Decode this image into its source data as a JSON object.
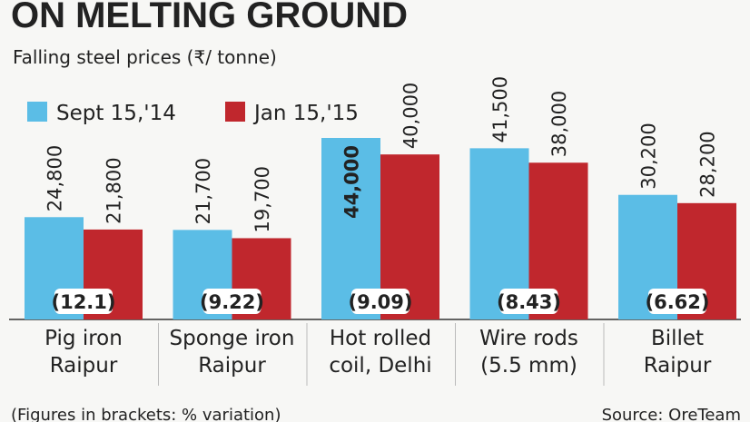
{
  "chart_data": {
    "type": "bar",
    "title": "ON MELTING GROUND",
    "subtitle": "Falling steel prices (₹/ tonne)",
    "categories": [
      "Pig iron\nRaipur",
      "Sponge iron\nRaipur",
      "Hot rolled\ncoil, Delhi",
      "Wire rods\n(5.5 mm)",
      "Billet\nRaipur"
    ],
    "series": [
      {
        "name": "Sept 15,'14",
        "color": "#5bbde6",
        "values": [
          24800,
          21700,
          44000,
          41500,
          30200
        ],
        "value_labels": [
          "24,800",
          "21,700",
          "44,000",
          "41,500",
          "30,200"
        ]
      },
      {
        "name": "Jan 15,'15",
        "color": "#c0272d",
        "values": [
          21800,
          19700,
          40000,
          38000,
          28200
        ],
        "value_labels": [
          "21,800",
          "19,700",
          "40,000",
          "38,000",
          "28,200"
        ]
      }
    ],
    "variation_labels": [
      "(12.1)",
      "(9.22)",
      "(9.09)",
      "(8.43)",
      "(6.62)"
    ],
    "footnote": "(Figures in brackets: % variation)",
    "source": "Source: OreTeam"
  }
}
